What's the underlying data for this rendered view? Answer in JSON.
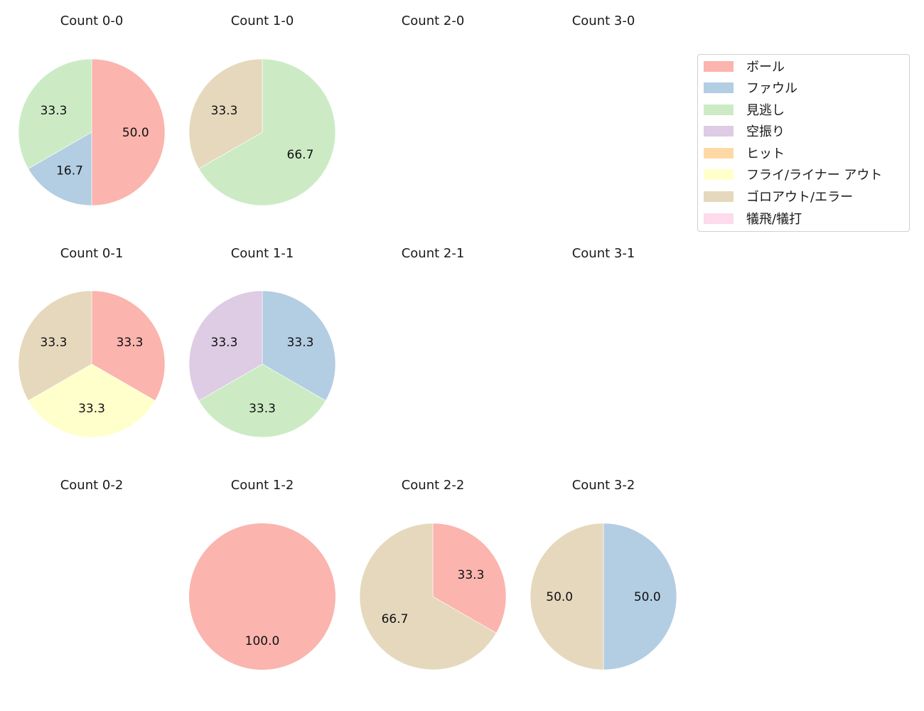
{
  "chart_data": {
    "type": "pie",
    "layout": {
      "rows": 3,
      "cols": 4,
      "start_angle": "12 o'clock",
      "direction": "clockwise",
      "legend_position": "upper right"
    },
    "legend": [
      {
        "label": "ボール",
        "color": "#fbb4ae"
      },
      {
        "label": "ファウル",
        "color": "#b3cde3"
      },
      {
        "label": "見逃し",
        "color": "#ccebc5"
      },
      {
        "label": "空振り",
        "color": "#decbe4"
      },
      {
        "label": "ヒット",
        "color": "#fed9a6"
      },
      {
        "label": "フライ/ライナー アウト",
        "color": "#ffffcc"
      },
      {
        "label": "ゴロアウト/エラー",
        "color": "#e5d8bd"
      },
      {
        "label": "犠飛/犠打",
        "color": "#fddaec"
      }
    ],
    "charts": [
      {
        "title": "Count 0-0",
        "row": 0,
        "col": 0,
        "slices": [
          {
            "label": "ボール",
            "value": 50.0
          },
          {
            "label": "ファウル",
            "value": 16.7
          },
          {
            "label": "見逃し",
            "value": 33.3
          }
        ]
      },
      {
        "title": "Count 1-0",
        "row": 0,
        "col": 1,
        "slices": [
          {
            "label": "見逃し",
            "value": 66.7
          },
          {
            "label": "ゴロアウト/エラー",
            "value": 33.3
          }
        ]
      },
      {
        "title": "Count 2-0",
        "row": 0,
        "col": 2,
        "slices": []
      },
      {
        "title": "Count 3-0",
        "row": 0,
        "col": 3,
        "slices": []
      },
      {
        "title": "Count 0-1",
        "row": 1,
        "col": 0,
        "slices": [
          {
            "label": "ボール",
            "value": 33.3
          },
          {
            "label": "フライ/ライナー アウト",
            "value": 33.3
          },
          {
            "label": "ゴロアウト/エラー",
            "value": 33.3
          }
        ]
      },
      {
        "title": "Count 1-1",
        "row": 1,
        "col": 1,
        "slices": [
          {
            "label": "ファウル",
            "value": 33.3
          },
          {
            "label": "見逃し",
            "value": 33.3
          },
          {
            "label": "空振り",
            "value": 33.3
          }
        ]
      },
      {
        "title": "Count 2-1",
        "row": 1,
        "col": 2,
        "slices": []
      },
      {
        "title": "Count 3-1",
        "row": 1,
        "col": 3,
        "slices": []
      },
      {
        "title": "Count 0-2",
        "row": 2,
        "col": 0,
        "slices": []
      },
      {
        "title": "Count 1-2",
        "row": 2,
        "col": 1,
        "slices": [
          {
            "label": "ボール",
            "value": 100.0
          }
        ]
      },
      {
        "title": "Count 2-2",
        "row": 2,
        "col": 2,
        "slices": [
          {
            "label": "ボール",
            "value": 33.3
          },
          {
            "label": "ゴロアウト/エラー",
            "value": 66.7
          }
        ]
      },
      {
        "title": "Count 3-2",
        "row": 2,
        "col": 3,
        "slices": [
          {
            "label": "ファウル",
            "value": 50.0
          },
          {
            "label": "ゴロアウト/エラー",
            "value": 50.0
          }
        ]
      }
    ]
  }
}
